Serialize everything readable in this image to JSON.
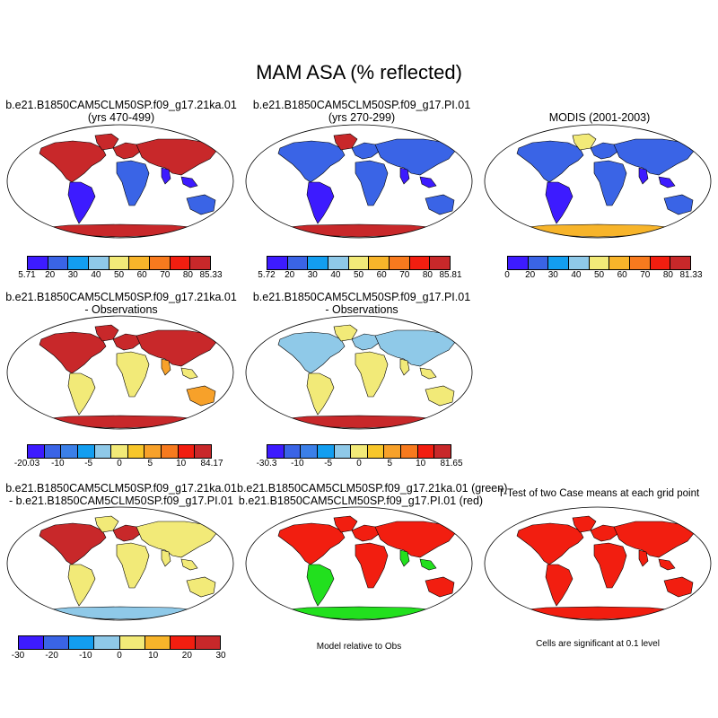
{
  "figure": {
    "title": "MAM ASA (% reflected)"
  },
  "row1": {
    "p1": {
      "line1": "b.e21.B1850CAM5CLM50SP.f09_g17.21ka.01",
      "line2": "(yrs 470-499)"
    },
    "p2": {
      "line1": "b.e21.B1850CAM5CLM50SP.f09_g17.PI.01",
      "line2": "(yrs 270-299)"
    },
    "p3": {
      "line1": "MODIS (2001-2003)"
    },
    "cb1": [
      "5.71",
      "20",
      "30",
      "40",
      "50",
      "60",
      "70",
      "80",
      "85.33"
    ],
    "cb2": [
      "5.72",
      "20",
      "30",
      "40",
      "50",
      "60",
      "70",
      "80",
      "85.81"
    ],
    "cb3": [
      "0",
      "20",
      "30",
      "40",
      "50",
      "60",
      "70",
      "80",
      "81.33"
    ]
  },
  "row2": {
    "p1": {
      "line1": "b.e21.B1850CAM5CLM50SP.f09_g17.21ka.01",
      "line2": "- Observations"
    },
    "p2": {
      "line1": "b.e21.B1850CAM5CLM50SP.f09_g17.PI.01",
      "line2": "- Observations"
    },
    "cb1": [
      "-20.03",
      "-10",
      "-5",
      "0",
      "5",
      "10",
      "84.17"
    ],
    "cb2": [
      "-30.3",
      "-10",
      "-5",
      "0",
      "5",
      "10",
      "81.65"
    ]
  },
  "row3": {
    "p1": {
      "line1": "b.e21.B1850CAM5CLM50SP.f09_g17.21ka.01",
      "line2": "- b.e21.B1850CAM5CLM50SP.f09_g17.PI.01"
    },
    "p2": {
      "line1": "b.e21.B1850CAM5CLM50SP.f09_g17.21ka.01 (green)",
      "line2": "b.e21.B1850CAM5CLM50SP.f09_g17.PI.01 (red)"
    },
    "p3": {
      "line1": "T-Test of two Case means at each grid point"
    },
    "cb1": [
      "-30",
      "-20",
      "-10",
      "0",
      "10",
      "20",
      "30"
    ],
    "note2": "Model relative to Obs",
    "note3": "Cells are significant at 0.1 level"
  },
  "colors": {
    "abs_scale": [
      "#3d1bff",
      "#3a64e6",
      "#139ef0",
      "#8fc9e8",
      "#f2ea78",
      "#f7b42a",
      "#f77a1e",
      "#f21e10",
      "#c8282a"
    ],
    "diff_scale": [
      "#3d1bff",
      "#3a64e6",
      "#3b7fe8",
      "#139ef0",
      "#8fc9e8",
      "#f2ea78",
      "#f7c62a",
      "#f7a12a",
      "#f77a1e",
      "#f21e10",
      "#c8282a"
    ],
    "t_scale": [
      "#3d1bff",
      "#3a64e6",
      "#139ef0",
      "#8fc9e8",
      "#f2ea78",
      "#f7b42a",
      "#f21e10",
      "#c8282a"
    ],
    "green": "#22e01e",
    "red": "#f21e10"
  }
}
